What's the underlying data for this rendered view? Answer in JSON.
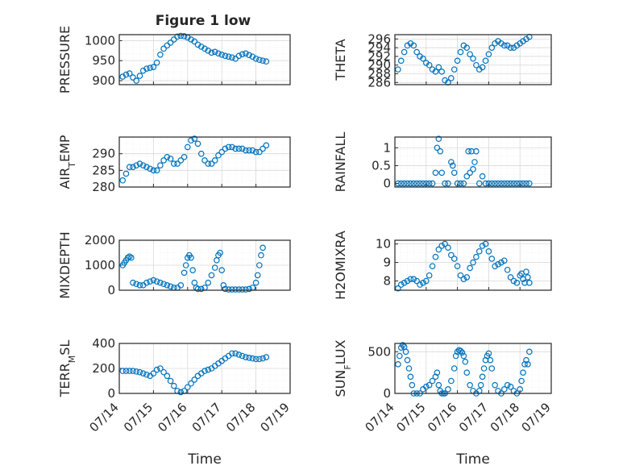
{
  "figure": {
    "title": "Figure 1 low",
    "xlabel": "Time",
    "x_ticks": [
      "07/14",
      "07/15",
      "07/16",
      "07/17",
      "07/18",
      "07/19"
    ],
    "marker_color": "#0072BD",
    "grid_color": "#d9d9d9"
  },
  "chart_data": [
    {
      "type": "scatter",
      "id": "pressure",
      "ylabel": "PRESSURE",
      "xlim": [
        0,
        5
      ],
      "ylim": [
        890,
        1015
      ],
      "yticks": [
        900,
        950,
        1000
      ],
      "x": [
        0.1,
        0.2,
        0.3,
        0.4,
        0.5,
        0.6,
        0.7,
        0.8,
        0.9,
        1.0,
        1.1,
        1.2,
        1.3,
        1.4,
        1.5,
        1.6,
        1.7,
        1.8,
        1.9,
        2.0,
        2.1,
        2.2,
        2.3,
        2.4,
        2.5,
        2.6,
        2.7,
        2.8,
        2.9,
        3.0,
        3.1,
        3.2,
        3.3,
        3.4,
        3.5,
        3.6,
        3.7,
        3.8,
        3.9,
        4.0,
        4.1,
        4.2,
        4.3
      ],
      "y": [
        910,
        915,
        918,
        908,
        900,
        912,
        925,
        930,
        932,
        934,
        945,
        965,
        980,
        988,
        995,
        1003,
        1010,
        1012,
        1011,
        1008,
        1003,
        998,
        990,
        985,
        980,
        975,
        970,
        972,
        968,
        965,
        962,
        960,
        958,
        955,
        962,
        966,
        968,
        964,
        960,
        955,
        952,
        950,
        948
      ]
    },
    {
      "type": "scatter",
      "id": "theta",
      "ylabel": "THETA",
      "xlim": [
        0,
        5
      ],
      "ylim": [
        285.5,
        297
      ],
      "yticks": [
        286,
        288,
        290,
        292,
        294,
        296
      ],
      "x": [
        0.1,
        0.2,
        0.3,
        0.4,
        0.5,
        0.6,
        0.7,
        0.8,
        0.9,
        1.0,
        1.1,
        1.2,
        1.3,
        1.4,
        1.5,
        1.6,
        1.7,
        1.8,
        1.9,
        2.0,
        2.1,
        2.2,
        2.3,
        2.4,
        2.5,
        2.6,
        2.7,
        2.8,
        2.9,
        3.0,
        3.1,
        3.2,
        3.3,
        3.4,
        3.5,
        3.6,
        3.7,
        3.8,
        3.9,
        4.0,
        4.1,
        4.2,
        4.3
      ],
      "y": [
        289,
        291,
        293,
        294.5,
        295,
        294.5,
        293,
        292,
        291.5,
        290.5,
        290,
        289,
        288.5,
        289.5,
        288.5,
        286.5,
        286,
        287,
        289,
        291,
        293,
        294.5,
        294,
        292.5,
        291.5,
        290,
        289,
        289.5,
        291,
        292.5,
        294,
        295,
        295.5,
        295,
        294.5,
        294.5,
        294,
        294,
        294.5,
        295,
        295.5,
        296,
        296.5
      ]
    },
    {
      "type": "scatter",
      "id": "air_temp",
      "ylabel": "AIR_TEMP",
      "xlim": [
        0,
        5
      ],
      "ylim": [
        280,
        295
      ],
      "yticks": [
        280,
        285,
        290
      ],
      "x": [
        0.1,
        0.2,
        0.3,
        0.4,
        0.5,
        0.6,
        0.7,
        0.8,
        0.9,
        1.0,
        1.1,
        1.2,
        1.3,
        1.4,
        1.5,
        1.6,
        1.7,
        1.8,
        1.9,
        2.0,
        2.1,
        2.2,
        2.3,
        2.4,
        2.5,
        2.6,
        2.7,
        2.8,
        2.9,
        3.0,
        3.1,
        3.2,
        3.3,
        3.4,
        3.5,
        3.6,
        3.7,
        3.8,
        3.9,
        4.0,
        4.1,
        4.2,
        4.3
      ],
      "y": [
        282,
        284,
        286,
        286,
        286.5,
        287,
        286.5,
        286,
        285.5,
        285,
        285,
        286.5,
        288,
        289,
        288.5,
        287,
        287,
        288,
        289,
        292,
        294,
        294.5,
        293,
        290,
        288,
        287,
        287,
        288,
        289.5,
        290.5,
        291.5,
        292,
        292,
        291.5,
        291.5,
        291.5,
        291,
        291,
        291,
        290.5,
        290.5,
        291.5,
        292.5
      ]
    },
    {
      "type": "scatter",
      "id": "rainfall",
      "ylabel": "RAINFALL",
      "xlim": [
        0,
        5
      ],
      "ylim": [
        -0.1,
        1.3
      ],
      "yticks": [
        0,
        0.5,
        1
      ],
      "x": [
        0.1,
        0.2,
        0.3,
        0.4,
        0.5,
        0.6,
        0.7,
        0.8,
        0.9,
        1.0,
        1.1,
        1.2,
        1.3,
        1.35,
        1.4,
        1.45,
        1.5,
        1.6,
        1.7,
        1.8,
        1.85,
        1.9,
        2.0,
        2.1,
        2.2,
        2.3,
        2.35,
        2.4,
        2.45,
        2.5,
        2.55,
        2.6,
        2.7,
        2.8,
        2.9,
        3.0,
        3.1,
        3.2,
        3.3,
        3.4,
        3.5,
        3.6,
        3.7,
        3.8,
        3.9,
        4.0,
        4.1,
        4.2,
        4.3
      ],
      "y": [
        0,
        0,
        0,
        0,
        0,
        0,
        0,
        0,
        0,
        0,
        0,
        0,
        0.3,
        1.0,
        1.25,
        0.9,
        0.3,
        0,
        0,
        0.6,
        0.5,
        0.3,
        0,
        0,
        0,
        0.2,
        0.9,
        0.3,
        0.9,
        0.4,
        0.6,
        0.9,
        0,
        0.2,
        0,
        0,
        0,
        0,
        0,
        0,
        0,
        0,
        0,
        0,
        0,
        0,
        0,
        0,
        0
      ]
    },
    {
      "type": "scatter",
      "id": "mixdepth",
      "ylabel": "MIXDEPTH",
      "xlim": [
        0,
        5
      ],
      "ylim": [
        0,
        2000
      ],
      "yticks": [
        0,
        1000,
        2000
      ],
      "x": [
        0.1,
        0.15,
        0.2,
        0.25,
        0.3,
        0.35,
        0.4,
        0.5,
        0.6,
        0.7,
        0.8,
        0.9,
        1.0,
        1.1,
        1.2,
        1.3,
        1.4,
        1.5,
        1.6,
        1.7,
        1.8,
        1.9,
        1.95,
        2.0,
        2.05,
        2.1,
        2.15,
        2.2,
        2.25,
        2.3,
        2.4,
        2.5,
        2.6,
        2.7,
        2.8,
        2.85,
        2.9,
        2.95,
        3.0,
        3.05,
        3.1,
        3.2,
        3.3,
        3.4,
        3.5,
        3.6,
        3.7,
        3.8,
        3.9,
        4.0,
        4.05,
        4.1,
        4.15,
        4.2
      ],
      "y": [
        1000,
        1100,
        1200,
        1300,
        1350,
        1300,
        300,
        250,
        200,
        200,
        300,
        350,
        400,
        350,
        300,
        250,
        200,
        150,
        100,
        100,
        200,
        700,
        1000,
        1300,
        1400,
        1300,
        800,
        300,
        100,
        50,
        50,
        100,
        300,
        600,
        900,
        1200,
        1400,
        1500,
        800,
        200,
        50,
        30,
        30,
        30,
        30,
        30,
        30,
        50,
        100,
        300,
        600,
        1000,
        1400,
        1700
      ]
    },
    {
      "type": "scatter",
      "id": "h2omixra",
      "ylabel": "H2OMIXRA",
      "xlim": [
        0,
        5
      ],
      "ylim": [
        7.5,
        10.2
      ],
      "yticks": [
        8,
        9,
        10
      ],
      "x": [
        0.1,
        0.2,
        0.3,
        0.4,
        0.5,
        0.6,
        0.7,
        0.8,
        0.9,
        1.0,
        1.1,
        1.2,
        1.3,
        1.4,
        1.5,
        1.6,
        1.7,
        1.8,
        1.9,
        2.0,
        2.1,
        2.2,
        2.3,
        2.4,
        2.5,
        2.6,
        2.7,
        2.8,
        2.9,
        3.0,
        3.1,
        3.2,
        3.3,
        3.4,
        3.5,
        3.6,
        3.7,
        3.8,
        3.9,
        4.0,
        4.05,
        4.1,
        4.15,
        4.2,
        4.25,
        4.3
      ],
      "y": [
        7.6,
        7.8,
        7.9,
        8.0,
        8.1,
        8.1,
        8.0,
        7.8,
        7.9,
        8.0,
        8.3,
        8.8,
        9.3,
        9.7,
        9.9,
        10.0,
        9.8,
        9.4,
        9.2,
        8.8,
        8.3,
        8.1,
        8.2,
        8.7,
        9.0,
        9.3,
        9.6,
        9.9,
        10.0,
        9.6,
        9.2,
        8.8,
        8.9,
        9.0,
        9.1,
        8.6,
        8.2,
        8.0,
        7.9,
        8.3,
        8.4,
        8.1,
        7.9,
        8.5,
        8.2,
        7.9
      ]
    },
    {
      "type": "scatter",
      "id": "terr_msl",
      "ylabel": "TERR_MSL",
      "xlim": [
        0,
        5
      ],
      "ylim": [
        0,
        400
      ],
      "yticks": [
        0,
        200,
        400
      ],
      "x": [
        0.1,
        0.2,
        0.3,
        0.4,
        0.5,
        0.6,
        0.7,
        0.8,
        0.9,
        1.0,
        1.1,
        1.2,
        1.3,
        1.4,
        1.5,
        1.6,
        1.7,
        1.8,
        1.9,
        2.0,
        2.1,
        2.2,
        2.3,
        2.4,
        2.5,
        2.6,
        2.7,
        2.8,
        2.9,
        3.0,
        3.1,
        3.2,
        3.3,
        3.4,
        3.5,
        3.6,
        3.7,
        3.8,
        3.9,
        4.0,
        4.1,
        4.2,
        4.3
      ],
      "y": [
        180,
        180,
        180,
        180,
        175,
        170,
        160,
        150,
        140,
        160,
        190,
        200,
        170,
        140,
        100,
        60,
        20,
        10,
        20,
        50,
        80,
        110,
        140,
        160,
        180,
        190,
        200,
        220,
        240,
        260,
        280,
        300,
        320,
        320,
        310,
        300,
        290,
        285,
        280,
        275,
        275,
        280,
        290
      ]
    },
    {
      "type": "scatter",
      "id": "sun_flux",
      "ylabel": "SUN_FLUX",
      "xlim": [
        0,
        5
      ],
      "ylim": [
        0,
        600
      ],
      "yticks": [
        0,
        500
      ],
      "x": [
        0.1,
        0.15,
        0.2,
        0.25,
        0.3,
        0.35,
        0.4,
        0.45,
        0.5,
        0.55,
        0.6,
        0.7,
        0.8,
        0.9,
        1.0,
        1.1,
        1.2,
        1.3,
        1.35,
        1.4,
        1.45,
        1.5,
        1.55,
        1.6,
        1.7,
        1.8,
        1.9,
        1.95,
        2.0,
        2.05,
        2.1,
        2.15,
        2.2,
        2.25,
        2.3,
        2.4,
        2.5,
        2.6,
        2.7,
        2.75,
        2.8,
        2.85,
        2.9,
        2.95,
        3.0,
        3.05,
        3.1,
        3.2,
        3.3,
        3.4,
        3.5,
        3.6,
        3.7,
        3.8,
        3.9,
        4.0,
        4.05,
        4.1,
        4.15,
        4.2,
        4.25,
        4.3
      ],
      "y": [
        350,
        450,
        550,
        580,
        560,
        500,
        400,
        300,
        200,
        100,
        0,
        0,
        0,
        50,
        80,
        100,
        150,
        200,
        250,
        100,
        30,
        0,
        0,
        0,
        50,
        150,
        300,
        450,
        500,
        520,
        510,
        490,
        450,
        380,
        250,
        100,
        30,
        0,
        30,
        100,
        200,
        300,
        400,
        450,
        480,
        400,
        300,
        100,
        30,
        0,
        50,
        100,
        80,
        30,
        0,
        50,
        150,
        250,
        350,
        400,
        350,
        500
      ]
    }
  ]
}
